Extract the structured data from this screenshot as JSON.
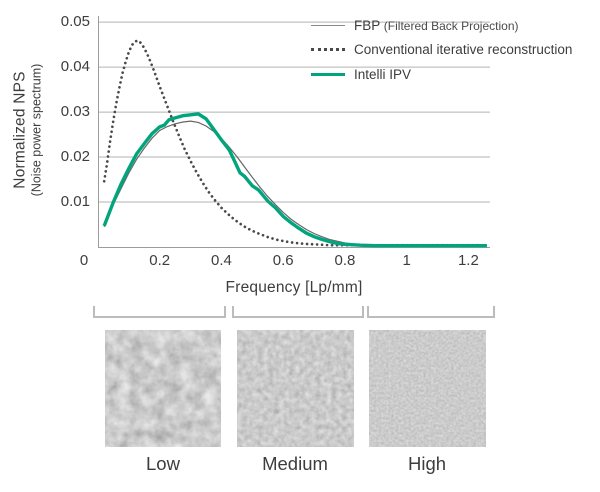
{
  "chart": {
    "y_axis_title_line1": "Normalized NPS",
    "y_axis_title_line2": "(Noise power spectrum)",
    "x_axis_label": "Frequency [Lp/mm]"
  },
  "legend": {
    "entries": [
      {
        "label": "FBP",
        "sublabel": "(Filtered Back Projection)",
        "style": "thin-solid"
      },
      {
        "label": "Conventional iterative reconstruction",
        "sublabel": "",
        "style": "dotted"
      },
      {
        "label": "Intelli IPV",
        "sublabel": "",
        "style": "thick-solid"
      }
    ]
  },
  "noise_panels": [
    {
      "label": "Low",
      "grain": "coarse"
    },
    {
      "label": "Medium",
      "grain": "medium"
    },
    {
      "label": "High",
      "grain": "fine"
    }
  ],
  "colors": {
    "accent_green": "#00a57d",
    "fbp_gray": "#666666",
    "dotted_gray": "#4a4a4a",
    "grid_gray": "#b3b3b3",
    "axis_gray": "#9c9c9c",
    "text": "#3d3d3d",
    "bracket_gray": "#bcbcbc"
  },
  "chart_data": {
    "type": "line",
    "title": "",
    "xlabel": "Frequency [Lp/mm]",
    "ylabel": "Normalized NPS (Noise power spectrum)",
    "xlim": [
      0,
      1.27
    ],
    "ylim": [
      0,
      0.0527
    ],
    "x_ticks": [
      0,
      0.2,
      0.4,
      0.6,
      0.8,
      1,
      1.2
    ],
    "y_ticks": [
      0.01,
      0.02,
      0.03,
      0.04,
      0.05
    ],
    "grid": "horizontal",
    "legend_position": "top-right",
    "series": [
      {
        "name": "FBP (Filtered Back Projection)",
        "style": "thin-solid",
        "color": "#666666",
        "points": [
          [
            0.02,
            0.0045
          ],
          [
            0.05,
            0.0095
          ],
          [
            0.075,
            0.013
          ],
          [
            0.1,
            0.0165
          ],
          [
            0.125,
            0.0195
          ],
          [
            0.15,
            0.022
          ],
          [
            0.175,
            0.0242
          ],
          [
            0.2,
            0.0259
          ],
          [
            0.225,
            0.0268
          ],
          [
            0.25,
            0.0274
          ],
          [
            0.275,
            0.0278
          ],
          [
            0.3,
            0.028
          ],
          [
            0.325,
            0.0277
          ],
          [
            0.35,
            0.0269
          ],
          [
            0.375,
            0.0257
          ],
          [
            0.4,
            0.0241
          ],
          [
            0.425,
            0.0222
          ],
          [
            0.45,
            0.0201
          ],
          [
            0.475,
            0.0178
          ],
          [
            0.5,
            0.0155
          ],
          [
            0.525,
            0.0133
          ],
          [
            0.55,
            0.0112
          ],
          [
            0.575,
            0.0094
          ],
          [
            0.6,
            0.0077
          ],
          [
            0.625,
            0.0062
          ],
          [
            0.65,
            0.005
          ],
          [
            0.675,
            0.0039
          ],
          [
            0.7,
            0.003
          ],
          [
            0.725,
            0.0023
          ],
          [
            0.75,
            0.0017
          ],
          [
            0.775,
            0.0013
          ],
          [
            0.8,
            0.0009
          ],
          [
            0.85,
            0.0005
          ],
          [
            0.9,
            0.0004
          ],
          [
            0.95,
            0.0003
          ],
          [
            1,
            0.0003
          ],
          [
            1.05,
            0.0002
          ],
          [
            1.1,
            0.0002
          ],
          [
            1.15,
            0.0002
          ],
          [
            1.2,
            0.0002
          ],
          [
            1.26,
            0.0002
          ]
        ]
      },
      {
        "name": "Conventional iterative reconstruction",
        "style": "dotted",
        "color": "#4a4a4a",
        "points": [
          [
            0.02,
            0.0146
          ],
          [
            0.03,
            0.019
          ],
          [
            0.04,
            0.0238
          ],
          [
            0.05,
            0.0282
          ],
          [
            0.06,
            0.0322
          ],
          [
            0.07,
            0.0357
          ],
          [
            0.08,
            0.0388
          ],
          [
            0.09,
            0.0413
          ],
          [
            0.1,
            0.0434
          ],
          [
            0.11,
            0.0449
          ],
          [
            0.12,
            0.0457
          ],
          [
            0.13,
            0.0459
          ],
          [
            0.14,
            0.0453
          ],
          [
            0.15,
            0.0442
          ],
          [
            0.16,
            0.0428
          ],
          [
            0.17,
            0.0412
          ],
          [
            0.18,
            0.0394
          ],
          [
            0.19,
            0.0376
          ],
          [
            0.2,
            0.0357
          ],
          [
            0.22,
            0.0321
          ],
          [
            0.24,
            0.0285
          ],
          [
            0.26,
            0.0251
          ],
          [
            0.28,
            0.0219
          ],
          [
            0.3,
            0.0191
          ],
          [
            0.32,
            0.0165
          ],
          [
            0.34,
            0.0142
          ],
          [
            0.36,
            0.0121
          ],
          [
            0.38,
            0.0103
          ],
          [
            0.4,
            0.0087
          ],
          [
            0.42,
            0.0074
          ],
          [
            0.44,
            0.0062
          ],
          [
            0.46,
            0.0052
          ],
          [
            0.48,
            0.0043
          ],
          [
            0.5,
            0.0036
          ],
          [
            0.52,
            0.003
          ],
          [
            0.55,
            0.0022
          ],
          [
            0.58,
            0.0016
          ],
          [
            0.61,
            0.0012
          ],
          [
            0.64,
            0.0009
          ],
          [
            0.67,
            0.0007
          ],
          [
            0.7,
            0.0006
          ],
          [
            0.75,
            0.0004
          ],
          [
            0.8,
            0.0004
          ],
          [
            0.85,
            0.0004
          ],
          [
            0.9,
            0.0004
          ],
          [
            0.95,
            0.0004
          ],
          [
            1,
            0.0004
          ],
          [
            1.05,
            0.0004
          ],
          [
            1.1,
            0.0004
          ],
          [
            1.15,
            0.0004
          ],
          [
            1.2,
            0.0004
          ],
          [
            1.26,
            0.0004
          ]
        ]
      },
      {
        "name": "Intelli IPV",
        "style": "thick-solid",
        "color": "#00a57d",
        "points": [
          [
            0.02,
            0.0047
          ],
          [
            0.05,
            0.01
          ],
          [
            0.075,
            0.014
          ],
          [
            0.1,
            0.0175
          ],
          [
            0.125,
            0.0207
          ],
          [
            0.15,
            0.023
          ],
          [
            0.175,
            0.0252
          ],
          [
            0.2,
            0.0267
          ],
          [
            0.215,
            0.0271
          ],
          [
            0.23,
            0.0283
          ],
          [
            0.25,
            0.0287
          ],
          [
            0.275,
            0.0292
          ],
          [
            0.3,
            0.0294
          ],
          [
            0.325,
            0.0296
          ],
          [
            0.35,
            0.0285
          ],
          [
            0.375,
            0.0262
          ],
          [
            0.4,
            0.0238
          ],
          [
            0.425,
            0.0216
          ],
          [
            0.445,
            0.0187
          ],
          [
            0.46,
            0.0165
          ],
          [
            0.475,
            0.0157
          ],
          [
            0.5,
            0.0136
          ],
          [
            0.52,
            0.0127
          ],
          [
            0.55,
            0.0102
          ],
          [
            0.575,
            0.0087
          ],
          [
            0.6,
            0.0068
          ],
          [
            0.625,
            0.0054
          ],
          [
            0.65,
            0.0042
          ],
          [
            0.675,
            0.0031
          ],
          [
            0.7,
            0.0023
          ],
          [
            0.725,
            0.0017
          ],
          [
            0.75,
            0.0012
          ],
          [
            0.775,
            0.0008
          ],
          [
            0.8,
            0.0006
          ],
          [
            0.85,
            0.0004
          ],
          [
            0.9,
            0.0003
          ],
          [
            0.95,
            0.0003
          ],
          [
            1,
            0.0003
          ],
          [
            1.05,
            0.0003
          ],
          [
            1.1,
            0.0003
          ],
          [
            1.15,
            0.0003
          ],
          [
            1.2,
            0.0003
          ],
          [
            1.26,
            0.0003
          ]
        ]
      }
    ]
  }
}
